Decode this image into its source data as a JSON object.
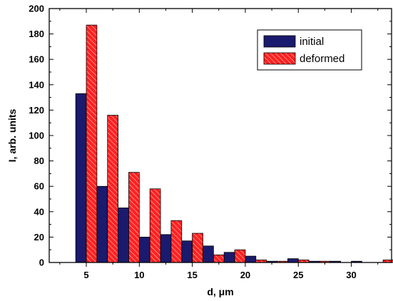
{
  "chart_data": {
    "type": "bar",
    "title": "",
    "xlabel": "d, μm",
    "ylabel": "I, arb. units",
    "xlim": [
      1.5,
      33.8
    ],
    "ylim": [
      0,
      200
    ],
    "x_ticks": [
      5,
      10,
      15,
      20,
      25,
      30
    ],
    "y_ticks": [
      0,
      20,
      40,
      60,
      80,
      100,
      120,
      140,
      160,
      180,
      200
    ],
    "grid": false,
    "legend_position": "top-right",
    "series": [
      {
        "name": "initial",
        "color": "#1a1a6e",
        "x": [
          4.5,
          6.5,
          8.5,
          10.5,
          12.5,
          14.5,
          16.5,
          18.5,
          20.5,
          22.5,
          24.5,
          26.5,
          28.5,
          30.5,
          32.5
        ],
        "values": [
          133,
          60,
          43,
          20,
          22,
          17,
          13,
          8,
          5,
          1,
          3,
          1,
          1,
          1,
          0
        ]
      },
      {
        "name": "deformed",
        "color": "#ff2020",
        "pattern": "hatched",
        "x": [
          5.5,
          7.5,
          9.5,
          11.5,
          13.5,
          15.5,
          17.5,
          19.5,
          21.5,
          23.5,
          25.5,
          27.5,
          29.5,
          31.5,
          33.5
        ],
        "values": [
          187,
          116,
          71,
          58,
          33,
          23,
          6,
          10,
          2,
          1,
          2,
          1,
          0,
          0,
          2
        ]
      }
    ]
  }
}
